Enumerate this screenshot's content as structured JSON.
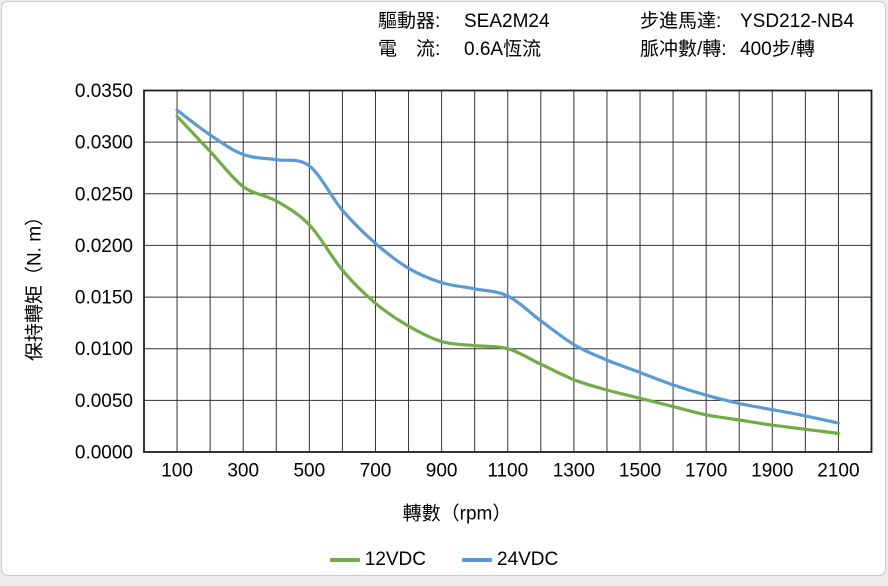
{
  "header": {
    "driver_label": "驅動器:",
    "driver_value": "SEA2M24",
    "current_label": "電　流:",
    "current_value": "0.6A恆流",
    "motor_label": "步進馬達:",
    "motor_value": "YSD212-NB4",
    "pulse_label": "脈冲數/轉:",
    "pulse_value": "400步/轉"
  },
  "chart_data": {
    "type": "line",
    "x": [
      100,
      200,
      300,
      400,
      500,
      600,
      700,
      800,
      900,
      1000,
      1100,
      1200,
      1300,
      1400,
      1500,
      1600,
      1700,
      1800,
      1900,
      2000,
      2100
    ],
    "series": [
      {
        "name": "12VDC",
        "color": "#70AD47",
        "values": [
          0.0325,
          0.0291,
          0.0257,
          0.0243,
          0.022,
          0.0176,
          0.0144,
          0.0122,
          0.0107,
          0.0103,
          0.01,
          0.0085,
          0.007,
          0.006,
          0.0052,
          0.0044,
          0.0036,
          0.0031,
          0.0026,
          0.0022,
          0.0018
        ]
      },
      {
        "name": "24VDC",
        "color": "#5B9BD5",
        "values": [
          0.0331,
          0.0307,
          0.0288,
          0.0283,
          0.0277,
          0.0234,
          0.0202,
          0.0178,
          0.0164,
          0.0158,
          0.0151,
          0.0127,
          0.0104,
          0.0089,
          0.0077,
          0.0065,
          0.0055,
          0.0047,
          0.0041,
          0.0035,
          0.0028
        ]
      }
    ],
    "title": "",
    "xlabel": "轉數（rpm）",
    "ylabel": "保持轉矩（N. m）",
    "xlim": [
      0,
      2200
    ],
    "ylim": [
      0,
      0.035
    ],
    "x_tick_values": [
      100,
      300,
      500,
      700,
      900,
      1100,
      1300,
      1500,
      1700,
      1900,
      2100
    ],
    "y_tick_values": [
      0.0,
      0.005,
      0.01,
      0.015,
      0.02,
      0.025,
      0.03,
      0.035
    ],
    "y_tick_decimals": 4,
    "grid": {
      "x_interval": 100,
      "y_interval": 0.005,
      "on": true
    },
    "grid_color": "#333333",
    "axis_color": "#1f1f1f",
    "tick_font_size": 19,
    "legend_position": "bottom"
  }
}
